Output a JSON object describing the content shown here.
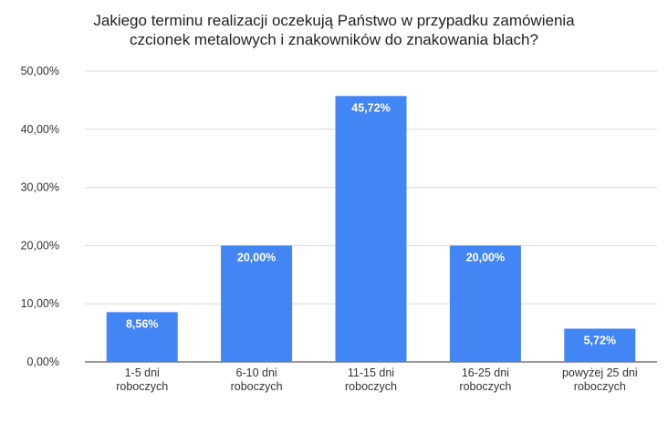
{
  "chart_data": {
    "type": "bar",
    "title_line1": "Jakiego terminu realizacji oczekują Państwo w przypadku zamówienia",
    "title_line2": "czcionek metalowych i znakowników do znakowania blach?",
    "categories": [
      [
        "1-5 dni",
        "roboczych"
      ],
      [
        "6-10 dni",
        "roboczych"
      ],
      [
        "11-15 dni",
        "roboczych"
      ],
      [
        "16-25 dni",
        "roboczych"
      ],
      [
        "powyżej 25 dni",
        "roboczych"
      ]
    ],
    "values": [
      8.56,
      20.0,
      45.72,
      20.0,
      5.72
    ],
    "value_labels": [
      "8,56%",
      "20,00%",
      "45,72%",
      "20,00%",
      "5,72%"
    ],
    "y_ticks": [
      "0,00%",
      "10,00%",
      "20,00%",
      "30,00%",
      "40,00%",
      "50,00%"
    ],
    "y_tick_values": [
      0,
      10,
      20,
      30,
      40,
      50
    ],
    "ylim": [
      0,
      50
    ],
    "xlabel": "",
    "ylabel": "",
    "grid": true,
    "legend": "none",
    "bar_color": "#4285f4",
    "grid_color": "#d9d9d9"
  }
}
